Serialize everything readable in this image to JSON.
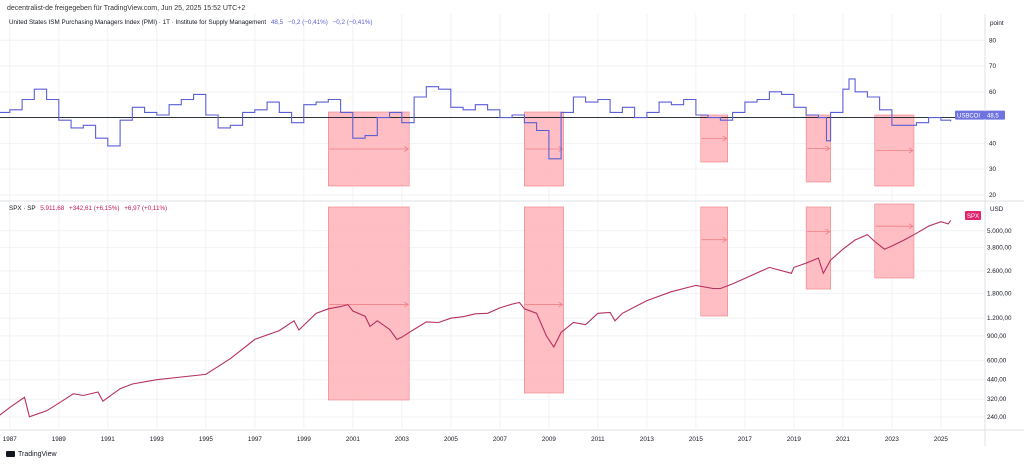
{
  "header": {
    "published_line": "decentralist-de freigegeben für TradingView.com, Jun 25, 2025 15:52 UTC+2"
  },
  "pmi_legend": {
    "title": "United States ISM Purchasing Managers Index (PMI) · 1T · Institute for Supply Management",
    "value": "48,5",
    "change1": "−0,2 (−0,41%)",
    "change2": "−0,2 (−0,41%)"
  },
  "spx_legend": {
    "title": "SPX · SP",
    "value": "5.911,68",
    "change1": "+342,61 (+6,15%)",
    "change2": "+6,97 (+0,11%)"
  },
  "footer": {
    "brand": "TradingView"
  },
  "colors": {
    "pmi_line": "#5b5fd6",
    "spx_line": "#b5305f",
    "recession_fill": "#ffb3b8",
    "recession_arrow": "#f07f86",
    "tag_pmi": "#6f73e0",
    "tag_spx": "#e0246e"
  },
  "chart_data": [
    {
      "type": "line",
      "name": "PMI",
      "units_label": "point",
      "y_ticks": [
        20,
        30,
        40,
        50,
        60,
        70,
        80
      ],
      "y_tick_labels": [
        "20",
        "30",
        "40",
        "50",
        "60",
        "70",
        "80"
      ],
      "ylim": [
        18,
        84
      ],
      "reference_line": 50,
      "last_tag": {
        "label": "USBCOI",
        "value": "48,5"
      },
      "x": [
        1986.5,
        1987.0,
        1987.5,
        1988.0,
        1988.5,
        1989.0,
        1989.5,
        1990.0,
        1990.5,
        1991.0,
        1991.5,
        1992.0,
        1992.5,
        1993.0,
        1993.5,
        1994.0,
        1994.5,
        1995.0,
        1995.5,
        1996.0,
        1996.5,
        1997.0,
        1997.5,
        1998.0,
        1998.5,
        1999.0,
        1999.5,
        2000.0,
        2000.5,
        2001.0,
        2001.5,
        2002.0,
        2002.5,
        2003.0,
        2003.5,
        2004.0,
        2004.5,
        2005.0,
        2005.5,
        2006.0,
        2006.5,
        2007.0,
        2007.5,
        2008.0,
        2008.5,
        2009.0,
        2009.5,
        2010.0,
        2010.5,
        2011.0,
        2011.5,
        2012.0,
        2012.5,
        2013.0,
        2013.5,
        2014.0,
        2014.5,
        2015.0,
        2015.5,
        2016.0,
        2016.5,
        2017.0,
        2017.5,
        2018.0,
        2018.5,
        2019.0,
        2019.5,
        2020.0,
        2020.33,
        2020.5,
        2021.0,
        2021.25,
        2021.5,
        2022.0,
        2022.5,
        2023.0,
        2023.5,
        2024.0,
        2024.5,
        2025.0,
        2025.4
      ],
      "values": [
        52,
        53,
        57,
        61,
        57,
        49,
        46,
        47,
        42,
        39,
        49,
        54,
        52,
        51,
        55,
        57,
        59,
        51,
        46,
        47,
        52,
        53,
        56,
        52,
        48,
        55,
        56,
        57,
        52,
        42,
        43,
        50,
        52,
        48,
        58,
        62,
        61,
        54,
        53,
        55,
        53,
        50,
        51,
        48,
        45,
        34,
        52,
        58,
        56,
        57,
        52,
        54,
        50,
        52,
        56,
        55,
        57,
        51,
        50,
        49,
        52,
        56,
        57,
        60,
        59,
        54,
        51,
        50,
        41,
        52,
        61,
        65,
        60,
        58,
        53,
        47,
        47,
        48,
        50,
        49,
        48.5
      ]
    },
    {
      "type": "line",
      "name": "SPX",
      "units_label": "USD",
      "log_scale": true,
      "y_ticks": [
        240,
        320,
        440,
        600,
        900,
        1200,
        1800,
        2600,
        3800,
        5000
      ],
      "y_tick_labels": [
        "240,00",
        "320,00",
        "440,00",
        "600,00",
        "900,00",
        "1.200,00",
        "1.800,00",
        "2.600,00",
        "3.800,00",
        "5.000,00"
      ],
      "ylim": [
        200,
        8000
      ],
      "last_tag": {
        "label": "SPX"
      },
      "x": [
        1986.5,
        1987.0,
        1987.6,
        1987.8,
        1988.5,
        1989.0,
        1989.6,
        1990.0,
        1990.6,
        1990.8,
        1991.5,
        1992.0,
        1993.0,
        1994.0,
        1995.0,
        1996.0,
        1997.0,
        1998.0,
        1998.6,
        1998.8,
        1999.5,
        2000.0,
        2000.5,
        2000.8,
        2001.0,
        2001.5,
        2001.7,
        2002.0,
        2002.5,
        2002.8,
        2003.0,
        2003.5,
        2004.0,
        2004.5,
        2005.0,
        2005.5,
        2006.0,
        2006.5,
        2007.0,
        2007.5,
        2007.8,
        2008.0,
        2008.5,
        2008.9,
        2009.2,
        2009.5,
        2010.0,
        2010.5,
        2011.0,
        2011.5,
        2011.7,
        2012.0,
        2013.0,
        2014.0,
        2015.0,
        2015.7,
        2016.0,
        2016.5,
        2017.0,
        2018.0,
        2018.9,
        2019.0,
        2019.5,
        2020.0,
        2020.2,
        2020.5,
        2021.0,
        2021.5,
        2022.0,
        2022.3,
        2022.7,
        2023.0,
        2023.5,
        2024.0,
        2024.5,
        2025.0,
        2025.3,
        2025.4
      ],
      "values": [
        240,
        280,
        330,
        240,
        265,
        300,
        350,
        340,
        360,
        310,
        380,
        410,
        440,
        460,
        480,
        620,
        850,
        980,
        1150,
        990,
        1300,
        1400,
        1450,
        1500,
        1350,
        1240,
        1050,
        1150,
        1000,
        850,
        880,
        1000,
        1130,
        1120,
        1200,
        1230,
        1290,
        1300,
        1420,
        1510,
        1550,
        1400,
        1300,
        900,
        750,
        950,
        1120,
        1080,
        1300,
        1320,
        1150,
        1300,
        1600,
        1850,
        2050,
        1950,
        1950,
        2100,
        2300,
        2750,
        2500,
        2750,
        2950,
        3200,
        2500,
        3100,
        3700,
        4300,
        4700,
        4200,
        3700,
        3900,
        4300,
        4800,
        5400,
        5800,
        5600,
        5911.68
      ]
    },
    {
      "type": "area",
      "name": "recession_boxes",
      "ranges": [
        [
          2000.0,
          2003.3
        ],
        [
          2008.0,
          2009.6
        ],
        [
          2015.2,
          2016.3
        ],
        [
          2019.5,
          2020.5
        ],
        [
          2022.3,
          2023.9
        ]
      ]
    }
  ],
  "x_axis": {
    "tick_years": [
      1987,
      1989,
      1991,
      1993,
      1995,
      1997,
      1999,
      2001,
      2003,
      2005,
      2007,
      2009,
      2011,
      2013,
      2015,
      2017,
      2019,
      2021,
      2023,
      2025
    ],
    "tick_labels": [
      "1987",
      "1989",
      "1991",
      "1993",
      "1995",
      "1997",
      "1999",
      "2001",
      "2003",
      "2005",
      "2007",
      "2009",
      "2011",
      "2013",
      "2015",
      "2017",
      "2019",
      "2021",
      "2023",
      "2025"
    ]
  }
}
